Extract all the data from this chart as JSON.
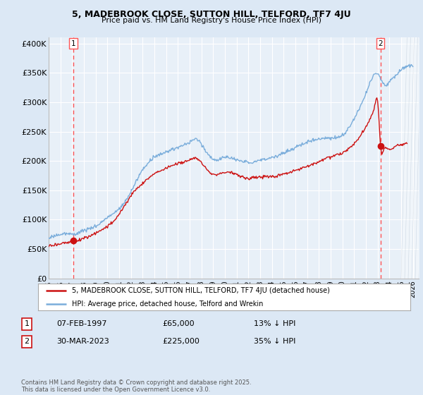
{
  "title": "5, MADEBROOK CLOSE, SUTTON HILL, TELFORD, TF7 4JU",
  "subtitle": "Price paid vs. HM Land Registry's House Price Index (HPI)",
  "ylabel_ticks": [
    "£0",
    "£50K",
    "£100K",
    "£150K",
    "£200K",
    "£250K",
    "£300K",
    "£350K",
    "£400K"
  ],
  "ytick_values": [
    0,
    50000,
    100000,
    150000,
    200000,
    250000,
    300000,
    350000,
    400000
  ],
  "ylim": [
    0,
    410000
  ],
  "xlim_start": 1995.0,
  "xlim_end": 2026.5,
  "xticks": [
    1995,
    1996,
    1997,
    1998,
    1999,
    2000,
    2001,
    2002,
    2003,
    2004,
    2005,
    2006,
    2007,
    2008,
    2009,
    2010,
    2011,
    2012,
    2013,
    2014,
    2015,
    2016,
    2017,
    2018,
    2019,
    2020,
    2021,
    2022,
    2023,
    2024,
    2025,
    2026
  ],
  "bg_color": "#dce8f5",
  "plot_bg": "#e8f0f8",
  "grid_color": "#ffffff",
  "hpi_color": "#7aaddb",
  "price_color": "#cc1111",
  "marker_color": "#cc1111",
  "vline_color": "#ff5555",
  "sale1_x": 1997.1,
  "sale1_y": 65000,
  "sale2_x": 2023.25,
  "sale2_y": 225000,
  "legend_line1": "5, MADEBROOK CLOSE, SUTTON HILL, TELFORD, TF7 4JU (detached house)",
  "legend_line2": "HPI: Average price, detached house, Telford and Wrekin",
  "annotation1_date": "07-FEB-1997",
  "annotation1_price": "£65,000",
  "annotation1_hpi": "13% ↓ HPI",
  "annotation2_date": "30-MAR-2023",
  "annotation2_price": "£225,000",
  "annotation2_hpi": "35% ↓ HPI",
  "footer": "Contains HM Land Registry data © Crown copyright and database right 2025.\nThis data is licensed under the Open Government Licence v3.0."
}
